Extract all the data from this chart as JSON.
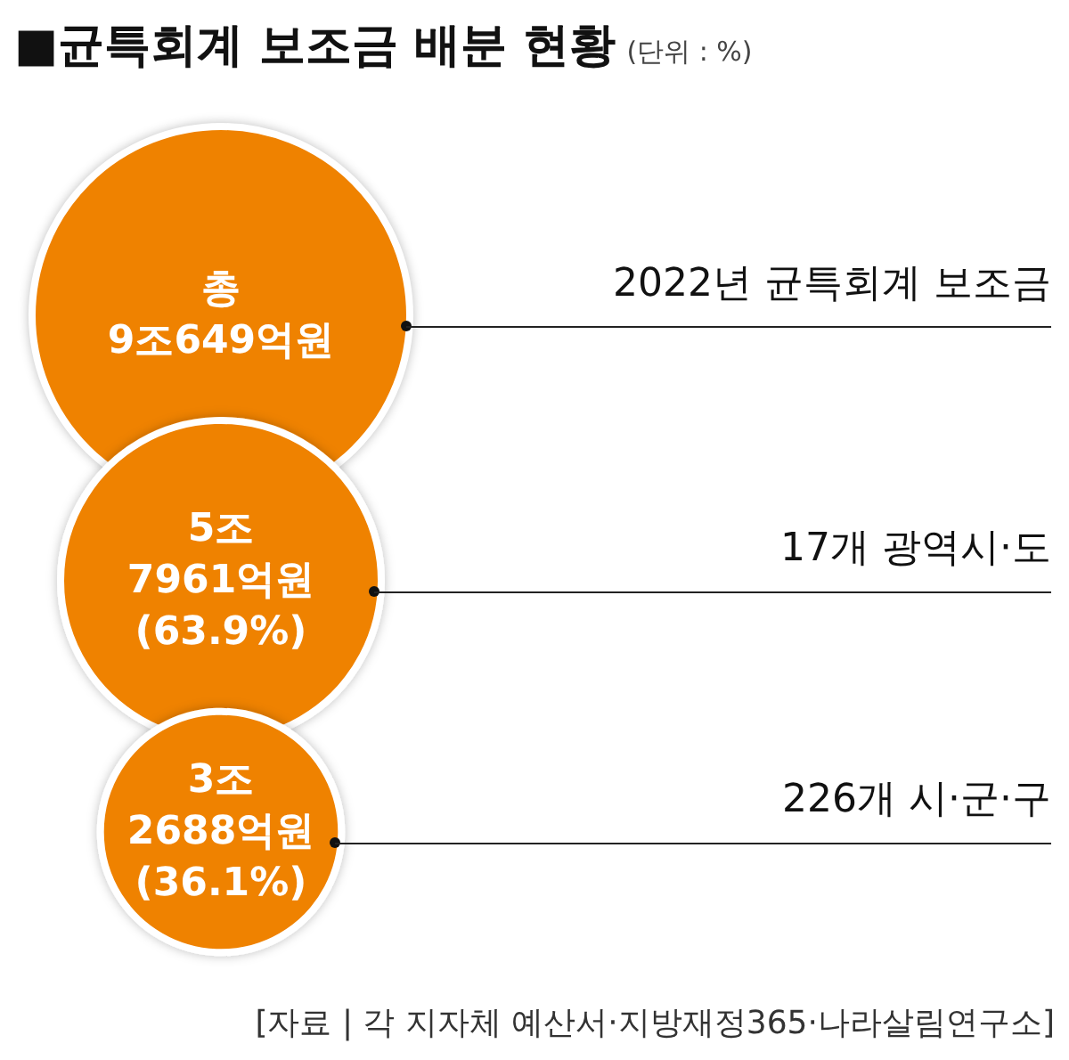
{
  "chart_data": {
    "type": "other",
    "title": "■균특회계 보조금 배분 현황",
    "subtitle": "(단위 : %)",
    "categories": [
      "17개 광역시·도",
      "226개 시·군·구"
    ],
    "values": [
      63.9,
      36.1
    ],
    "value_labels": [
      "5조\n7961억원\n(63.9%)",
      "3조\n2688억원\n(36.1%)"
    ],
    "color": "#ef8200",
    "annotations": [
      "총\n9조649억원",
      "2022년 균특회계 보조금",
      "[자료 | 각 지자체 예산서·지방재정365·나라살림연구소]"
    ]
  }
}
